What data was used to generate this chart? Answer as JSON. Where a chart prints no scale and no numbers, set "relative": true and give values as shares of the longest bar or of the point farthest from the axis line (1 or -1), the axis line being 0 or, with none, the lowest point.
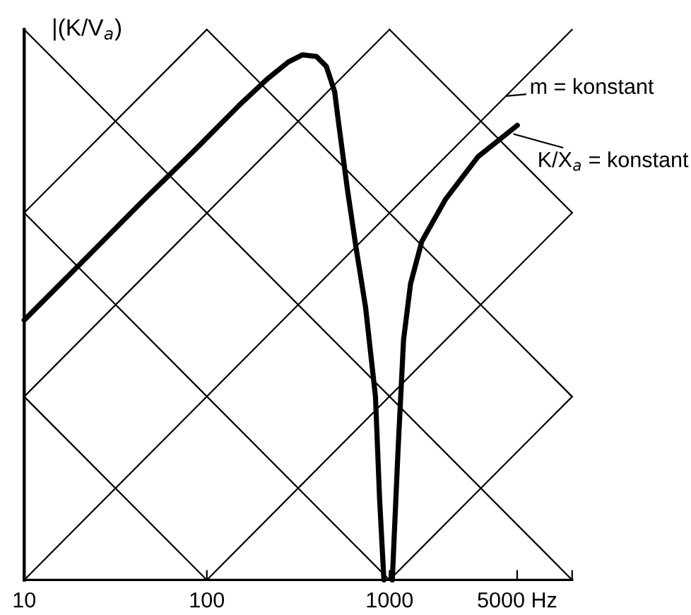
{
  "chart_data": {
    "type": "line",
    "relative": true,
    "log": "x",
    "ylabel": "|(K/V$_{a}$)",
    "xlim": [
      10,
      10000
    ],
    "xticks": [
      10,
      100,
      1000,
      {
        "value": 5000,
        "label": "5000 Hz"
      },
      {
        "value": 10000,
        "label": null
      }
    ],
    "grid": false,
    "legend": false,
    "marker": "none",
    "line_style": "solid",
    "series": [
      {
        "color": "#000000",
        "x": [
          10,
          21.4,
          43.5,
          88.3,
          150,
          214,
          279,
          334,
          398,
          451,
          501,
          519,
          588,
          653,
          740,
          838,
          883,
          932,
          1000,
          1036,
          1112,
          1194,
          1304,
          1503,
          2031,
          3054,
          5012
        ],
        "values": [
          0.472,
          0.582,
          0.685,
          0.785,
          0.862,
          0.91,
          0.941,
          0.954,
          0.951,
          0.933,
          0.887,
          0.846,
          0.71,
          0.608,
          0.495,
          0.333,
          0.146,
          0,
          null,
          0,
          0.231,
          0.436,
          0.538,
          0.615,
          0.692,
          0.769,
          0.826
        ]
      },
      {
        "color": "#000000",
        "x": [
          10,
          10000
        ],
        "values": [
          0,
          1
        ]
      },
      {
        "color": "#000000",
        "x": [
          10,
          1000
        ],
        "values": [
          0.333,
          1
        ]
      },
      {
        "color": "#000000",
        "x": [
          10,
          100
        ],
        "values": [
          0.667,
          1
        ]
      },
      {
        "color": "#000000",
        "x": [
          100,
          10000
        ],
        "values": [
          0,
          0.667
        ]
      },
      {
        "color": "#000000",
        "x": [
          1000,
          10000
        ],
        "values": [
          0,
          0.333
        ]
      },
      {
        "color": "#000000",
        "x": [
          10,
          10000
        ],
        "values": [
          1,
          0
        ]
      },
      {
        "color": "#000000",
        "x": [
          10,
          1000
        ],
        "values": [
          0.667,
          0
        ]
      },
      {
        "color": "#000000",
        "x": [
          10,
          100
        ],
        "values": [
          0.333,
          0
        ]
      },
      {
        "color": "#000000",
        "x": [
          100,
          10000
        ],
        "values": [
          1,
          0.333
        ]
      },
      {
        "color": "#000000",
        "x": [
          1000,
          10000
        ],
        "values": [
          1,
          0.667
        ]
      }
    ],
    "annotations": [
      {
        "text": "m = konstant",
        "x": 4350,
        "y": 0.879
      },
      {
        "text": "K/X$_{a}$ = konstant",
        "x": 4800,
        "y": 0.81
      }
    ]
  }
}
